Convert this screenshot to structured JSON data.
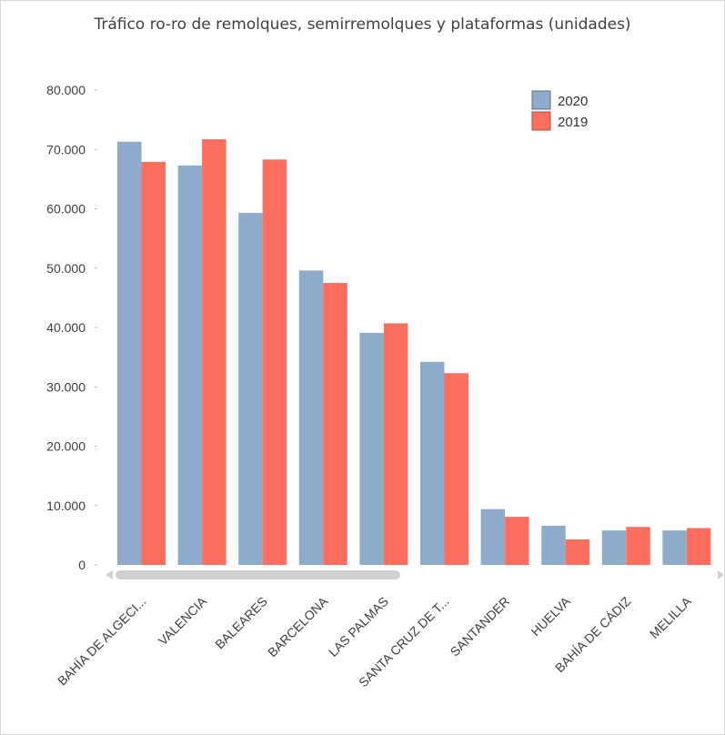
{
  "colors": {
    "s2020": "#8eabcb",
    "s2019": "#fc6e5d",
    "scroll_thumb": "#cfcfcf",
    "scroll_arrow": "#d0d0d0"
  },
  "chart_data": {
    "type": "bar",
    "title": "Tráfico ro-ro de remolques, semirremolques y plataformas (unidades)",
    "xlabel": "",
    "ylabel": "",
    "ylim": [
      0,
      80000
    ],
    "yticks": [
      0,
      10000,
      20000,
      30000,
      40000,
      50000,
      60000,
      70000,
      80000
    ],
    "ytick_labels": [
      "0",
      "10.000",
      "20.000",
      "30.000",
      "40.000",
      "50.000",
      "60.000",
      "70.000",
      "80.000"
    ],
    "categories": [
      "BAHÍA DE ALGECI...",
      "VALENCIA",
      "BALEARES",
      "BARCELONA",
      "LAS PALMAS",
      "SANTA CRUZ DE T...",
      "SANTANDER",
      "HUELVA",
      "BAHÍA DE CÁDIZ",
      "MELILLA"
    ],
    "series": [
      {
        "name": "2020",
        "values": [
          71300,
          67300,
          59300,
          49600,
          39100,
          34200,
          9400,
          6600,
          5800,
          5800
        ]
      },
      {
        "name": "2019",
        "values": [
          67900,
          71700,
          68300,
          47500,
          40700,
          32300,
          8100,
          4300,
          6400,
          6200
        ]
      }
    ],
    "legend": "top-right",
    "grid": false
  }
}
